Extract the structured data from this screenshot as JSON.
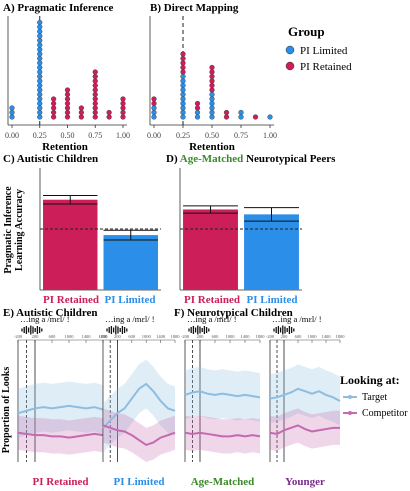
{
  "colors": {
    "pi_retained": "#cc1f5a",
    "pi_limited": "#2b8ee8",
    "target": "#8dbde0",
    "competitor": "#c46ab0",
    "age_matched": "#3a8a2a",
    "younger": "#7a2a8a",
    "gray_text": "#777777"
  },
  "panel_labels": {
    "A": "A) Pragmatic Inference",
    "B": "B) Direct Mapping",
    "C": "C) Autistic Children",
    "D_prefix": "D)",
    "D_green": "Age-Matched",
    "D_suffix": "Neurotypical Peers",
    "E": "E) Autistic Children",
    "F": "F) Neurotypical Children"
  },
  "legend_group": {
    "title": "Group",
    "items": [
      "PI Limited",
      "PI Retained"
    ]
  },
  "legend_looking": {
    "title": "Looking at:",
    "items": [
      "Target",
      "Competitor"
    ]
  },
  "ylabel_bar": [
    "Pragmatic Inference",
    "Learning Accuracy"
  ],
  "ylabel_looks": "Proportion of Looks",
  "audio_caption": "…ing a /mɛl/ !",
  "chart_data": [
    {
      "id": "A",
      "type": "scatter",
      "title": "A) Pragmatic Inference",
      "xlabel": "Retention",
      "xlim": [
        0,
        1
      ],
      "ticks": [
        "0.00",
        "0.25",
        "0.50",
        "0.75",
        "1.00"
      ],
      "tick_values": [
        0,
        0.25,
        0.5,
        0.75,
        1
      ],
      "cutoff": 0.25,
      "stacks": [
        {
          "x": 0.0,
          "n": 3,
          "group": "PI Limited"
        },
        {
          "x": 0.25,
          "n": 22,
          "group": "PI Limited"
        },
        {
          "x": 0.375,
          "n": 5,
          "group": "PI Retained"
        },
        {
          "x": 0.5,
          "n": 7,
          "group": "PI Retained"
        },
        {
          "x": 0.625,
          "n": 3,
          "group": "PI Retained"
        },
        {
          "x": 0.75,
          "n": 11,
          "group": "PI Retained"
        },
        {
          "x": 0.875,
          "n": 2,
          "group": "PI Retained"
        },
        {
          "x": 1.0,
          "n": 5,
          "group": "PI Retained"
        }
      ]
    },
    {
      "id": "B",
      "type": "scatter",
      "title": "B) Direct Mapping",
      "xlabel": "Retention",
      "xlim": [
        0,
        1
      ],
      "ticks": [
        "0.00",
        "0.25",
        "0.50",
        "0.75",
        "1.00"
      ],
      "tick_values": [
        0,
        0.25,
        0.5,
        0.75,
        1
      ],
      "cutoff": 0.25,
      "stacks": [
        {
          "x": 0.0,
          "n": 3,
          "group": "PI Limited"
        },
        {
          "x": 0.0,
          "n": 2,
          "group": "PI Retained"
        },
        {
          "x": 0.25,
          "n": 10,
          "group": "PI Limited"
        },
        {
          "x": 0.25,
          "n": 5,
          "group": "PI Retained"
        },
        {
          "x": 0.375,
          "n": 2,
          "group": "PI Limited"
        },
        {
          "x": 0.375,
          "n": 2,
          "group": "PI Retained"
        },
        {
          "x": 0.5,
          "n": 6,
          "group": "PI Limited"
        },
        {
          "x": 0.5,
          "n": 6,
          "group": "PI Retained"
        },
        {
          "x": 0.625,
          "n": 2,
          "group": "PI Retained"
        },
        {
          "x": 0.75,
          "n": 2,
          "group": "PI Limited"
        },
        {
          "x": 0.875,
          "n": 1,
          "group": "PI Retained"
        },
        {
          "x": 1.0,
          "n": 1,
          "group": "PI Limited"
        }
      ]
    },
    {
      "id": "C",
      "type": "bar",
      "title": "C) Autistic Children",
      "categories": [
        "PI Retained",
        "PI Limited"
      ],
      "values": [
        0.74,
        0.45
      ],
      "errors": [
        0.035,
        0.04
      ],
      "ylim": [
        0,
        1
      ],
      "chance": 0.5,
      "ylabel": "Pragmatic Inference Learning Accuracy"
    },
    {
      "id": "D",
      "type": "bar",
      "title": "D) Age-Matched Neurotypical Peers",
      "categories": [
        "PI Retained",
        "PI Limited"
      ],
      "values": [
        0.66,
        0.62
      ],
      "errors": [
        0.03,
        0.055
      ],
      "ylim": [
        0,
        1
      ],
      "chance": 0.5
    },
    {
      "id": "E_F",
      "type": "line",
      "ylabel": "Proportion of Looks",
      "time_ticks": [
        "-200",
        "200",
        "600",
        "1000",
        "1400",
        "1800"
      ],
      "tick_values": [
        -200,
        200,
        600,
        1000,
        1400,
        1800
      ],
      "xlim": [
        -200,
        1800
      ],
      "ylim": [
        0,
        1
      ],
      "panels": [
        {
          "label": "PI Retained",
          "color_key": "pi_retained",
          "target": [
            0.4,
            0.42,
            0.44,
            0.45,
            0.44,
            0.45,
            0.46,
            0.45,
            0.44,
            0.45,
            0.43
          ],
          "competitor": [
            0.24,
            0.23,
            0.22,
            0.22,
            0.21,
            0.21,
            0.2,
            0.21,
            0.22,
            0.23,
            0.22
          ]
        },
        {
          "label": "PI Limited",
          "color_key": "pi_limited",
          "target": [
            0.28,
            0.34,
            0.4,
            0.44,
            0.52,
            0.6,
            0.64,
            0.58,
            0.5,
            0.44,
            0.42
          ],
          "competitor": [
            0.3,
            0.28,
            0.26,
            0.25,
            0.22,
            0.18,
            0.14,
            0.16,
            0.2,
            0.22,
            0.24
          ]
        },
        {
          "label": "Age-Matched",
          "color_key": "age_matched",
          "target": [
            0.55,
            0.57,
            0.58,
            0.56,
            0.55,
            0.56,
            0.55,
            0.54,
            0.55,
            0.54,
            0.53
          ],
          "competitor": [
            0.24,
            0.23,
            0.24,
            0.23,
            0.22,
            0.21,
            0.21,
            0.22,
            0.21,
            0.22,
            0.21
          ]
        },
        {
          "label": "Younger",
          "color_key": "younger",
          "target": [
            0.52,
            0.53,
            0.55,
            0.57,
            0.6,
            0.58,
            0.56,
            0.58,
            0.55,
            0.53,
            0.5
          ],
          "competitor": [
            0.24,
            0.23,
            0.26,
            0.28,
            0.3,
            0.27,
            0.25,
            0.26,
            0.27,
            0.28,
            0.28
          ]
        }
      ]
    }
  ]
}
